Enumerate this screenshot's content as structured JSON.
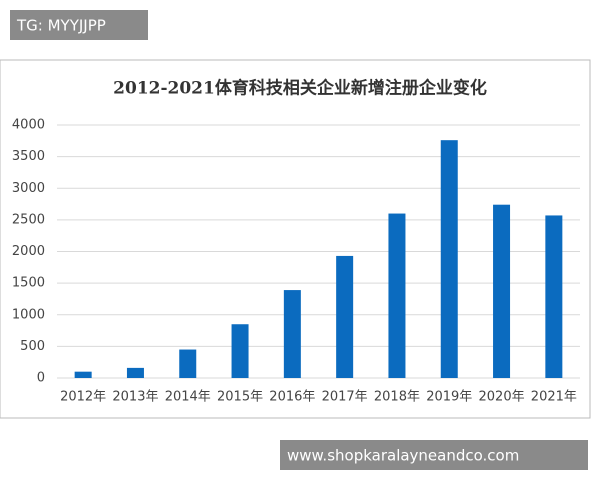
{
  "chart_data": {
    "type": "bar",
    "title": "2012-2021体育科技相关企业新增注册企业变化",
    "categories": [
      "2012年",
      "2013年",
      "2014年",
      "2015年",
      "2016年",
      "2017年",
      "2018年",
      "2019年",
      "2020年",
      "2021年"
    ],
    "values": [
      100,
      160,
      450,
      850,
      1390,
      1930,
      2600,
      3760,
      2740,
      2570
    ],
    "color": "#0b6bbf",
    "ylim": [
      0,
      4000
    ],
    "yticks": [
      0,
      500,
      1000,
      1500,
      2000,
      2500,
      3000,
      3500,
      4000
    ],
    "grid": true
  },
  "overlays": {
    "top_label": "TG: MYYJJPP",
    "bottom_label": "www.shopkaralayneandco.com"
  }
}
